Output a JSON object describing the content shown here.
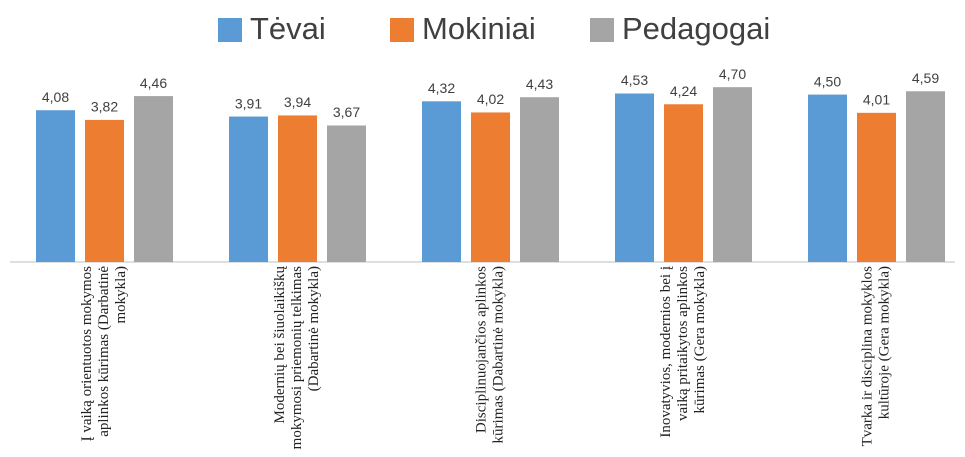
{
  "chart_data": {
    "type": "bar",
    "categories": [
      "Į vaiką orientuotos mokymos aplinkos kūrimas (Darbatinė mokykla)",
      "Modernių bei šiuolaikiškų mokymosi priemonių telkimas (Dabartinė mokykla)",
      "Disciplinuojančios aplinkos kūrimas (Dabartinė mokykla)",
      "Inovatyvios, modernios bei į vaiką pritaikytos aplinkos kūrimas (Gera mokykla)",
      "Tvarka ir disciplina mokyklos kultūroje (Gera mokykla)"
    ],
    "series": [
      {
        "name": "Tėvai",
        "color": "#5b9bd5",
        "values": [
          4.08,
          3.91,
          4.32,
          4.53,
          4.5
        ],
        "value_labels": [
          "4,08",
          "3,91",
          "4,32",
          "4,53",
          "4,50"
        ]
      },
      {
        "name": "Mokiniai",
        "color": "#ed7d31",
        "values": [
          3.82,
          3.94,
          4.02,
          4.24,
          4.01
        ],
        "value_labels": [
          "3,82",
          "3,94",
          "4,02",
          "4,24",
          "4,01"
        ]
      },
      {
        "name": "Pedagogai",
        "color": "#a5a5a5",
        "values": [
          4.46,
          3.67,
          4.43,
          4.7,
          4.59
        ],
        "value_labels": [
          "4,46",
          "3,67",
          "4,43",
          "4,70",
          "4,59"
        ]
      }
    ],
    "ylim": [
      0,
      5
    ],
    "legend": "top"
  }
}
